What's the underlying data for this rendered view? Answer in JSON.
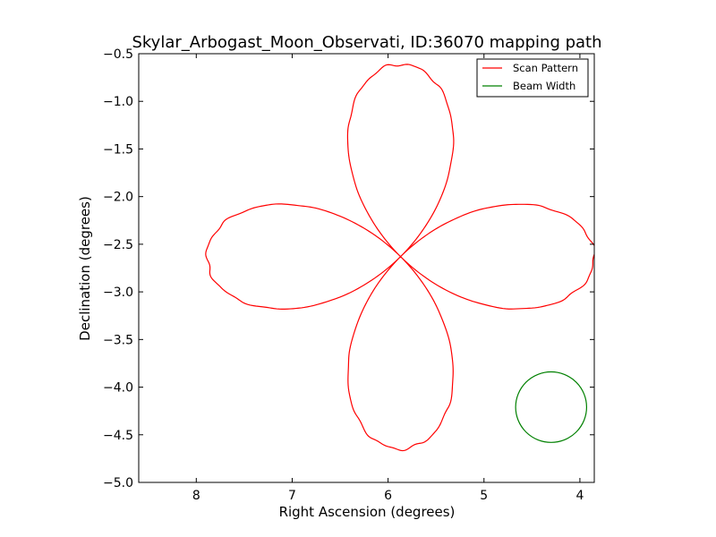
{
  "chart_data": {
    "type": "line",
    "title": "Skylar_Arbogast_Moon_Observati, ID:36070 mapping path",
    "xlabel": "Right Ascension (degrees)",
    "ylabel": "Declination (degrees)",
    "xlim": [
      8.6,
      3.85
    ],
    "ylim": [
      -5.0,
      -0.5
    ],
    "x_reversed": true,
    "grid": false,
    "legend_position": "top-right",
    "xticks": [
      8,
      7,
      6,
      5,
      4
    ],
    "xtick_labels": [
      "8",
      "7",
      "6",
      "5",
      "4"
    ],
    "yticks": [
      -0.5,
      -1.0,
      -1.5,
      -2.0,
      -2.5,
      -3.0,
      -3.5,
      -4.0,
      -4.5,
      -5.0
    ],
    "ytick_labels": [
      "−0.5",
      "−1.0",
      "−1.5",
      "−2.0",
      "−2.5",
      "−3.0",
      "−3.5",
      "−4.0",
      "−4.5",
      "−5.0"
    ],
    "series": [
      {
        "name": "Scan Pattern",
        "color": "#ff0000",
        "kind": "four-petal rose curve",
        "center": [
          5.87,
          -2.63
        ],
        "petal_radius": 2.02,
        "points": [
          [
            7.88,
            -2.63
          ],
          [
            7.72,
            -2.25
          ],
          [
            7.3,
            -2.1
          ],
          [
            6.8,
            -2.1
          ],
          [
            6.2,
            -2.35
          ],
          [
            5.87,
            -2.63
          ],
          [
            5.4,
            -2.9
          ],
          [
            4.9,
            -3.15
          ],
          [
            4.4,
            -3.15
          ],
          [
            4.02,
            -2.9
          ],
          [
            3.87,
            -2.63
          ],
          [
            4.02,
            -2.35
          ],
          [
            4.6,
            -2.08
          ],
          [
            5.2,
            -2.2
          ],
          [
            5.87,
            -2.63
          ],
          [
            6.1,
            -3.15
          ],
          [
            6.3,
            -3.8
          ],
          [
            6.2,
            -4.45
          ],
          [
            5.87,
            -4.65
          ],
          [
            5.5,
            -4.45
          ],
          [
            5.43,
            -3.8
          ],
          [
            5.6,
            -3.1
          ],
          [
            5.87,
            -2.63
          ],
          [
            6.15,
            -2.05
          ],
          [
            6.3,
            -1.4
          ],
          [
            6.2,
            -0.85
          ],
          [
            5.87,
            -0.62
          ],
          [
            5.55,
            -0.85
          ],
          [
            5.45,
            -1.4
          ],
          [
            5.6,
            -2.05
          ],
          [
            5.87,
            -2.63
          ],
          [
            6.3,
            -2.9
          ],
          [
            6.8,
            -3.15
          ],
          [
            7.4,
            -3.15
          ],
          [
            7.8,
            -2.9
          ],
          [
            7.88,
            -2.63
          ]
        ]
      },
      {
        "name": "Beam Width",
        "color": "#008000",
        "kind": "circle",
        "center": [
          4.3,
          -4.21
        ],
        "radius": 0.37
      }
    ]
  }
}
